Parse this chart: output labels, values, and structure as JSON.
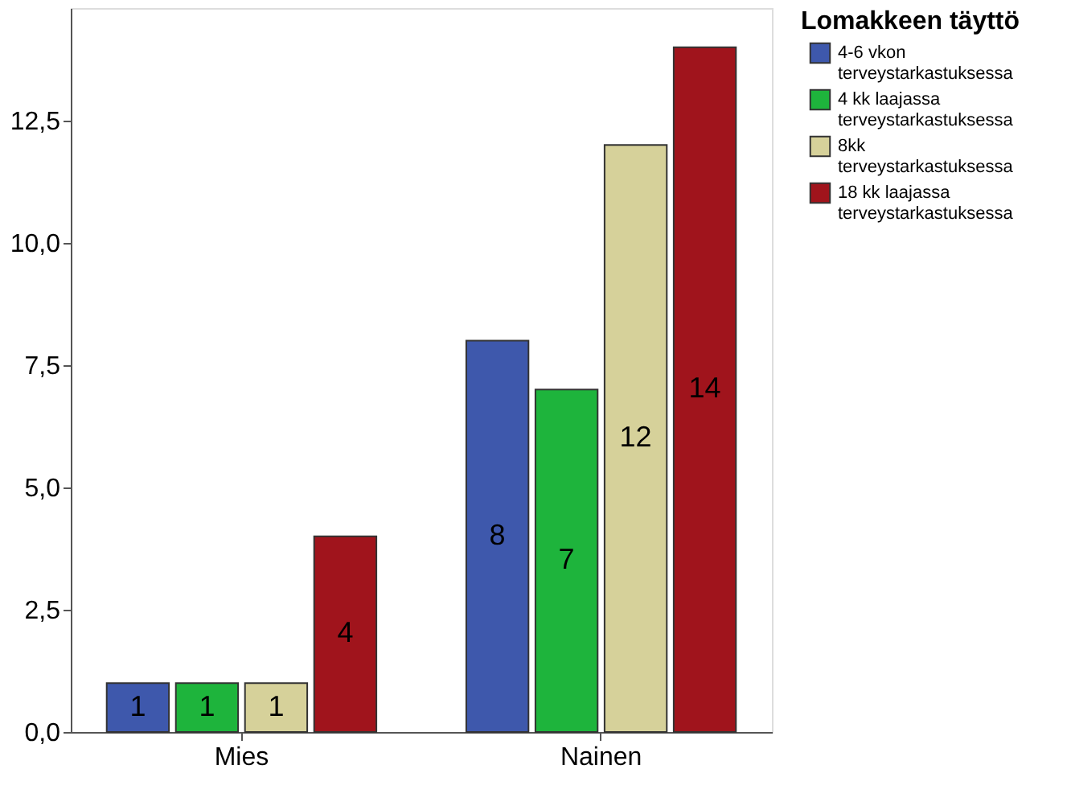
{
  "chart_data": {
    "type": "bar",
    "categories": [
      "Mies",
      "Nainen"
    ],
    "legend_title": "Lomakkeen täyttö",
    "series": [
      {
        "name": "4-6 vkon terveystarkastuksessa",
        "color": "#3e58ac",
        "values": [
          1,
          8
        ]
      },
      {
        "name": "4 kk laajassa terveystarkastuksessa",
        "color": "#1eb43c",
        "values": [
          1,
          7
        ]
      },
      {
        "name": "8kk terveystarkastuksessa",
        "color": "#d6d19a",
        "values": [
          1,
          12
        ]
      },
      {
        "name": "18 kk laajassa terveystarkastuksessa",
        "color": "#a0141c",
        "values": [
          4,
          14
        ]
      }
    ],
    "ylim": [
      0,
      14.8
    ],
    "yticks": [
      {
        "value": 0,
        "label": "0,0"
      },
      {
        "value": 2.5,
        "label": "2,5"
      },
      {
        "value": 5,
        "label": "5,0"
      },
      {
        "value": 7.5,
        "label": "7,5"
      },
      {
        "value": 10,
        "label": "10,0"
      },
      {
        "value": 12.5,
        "label": "12,5"
      }
    ],
    "data_labels": true,
    "grid": false,
    "legend": "top right"
  }
}
